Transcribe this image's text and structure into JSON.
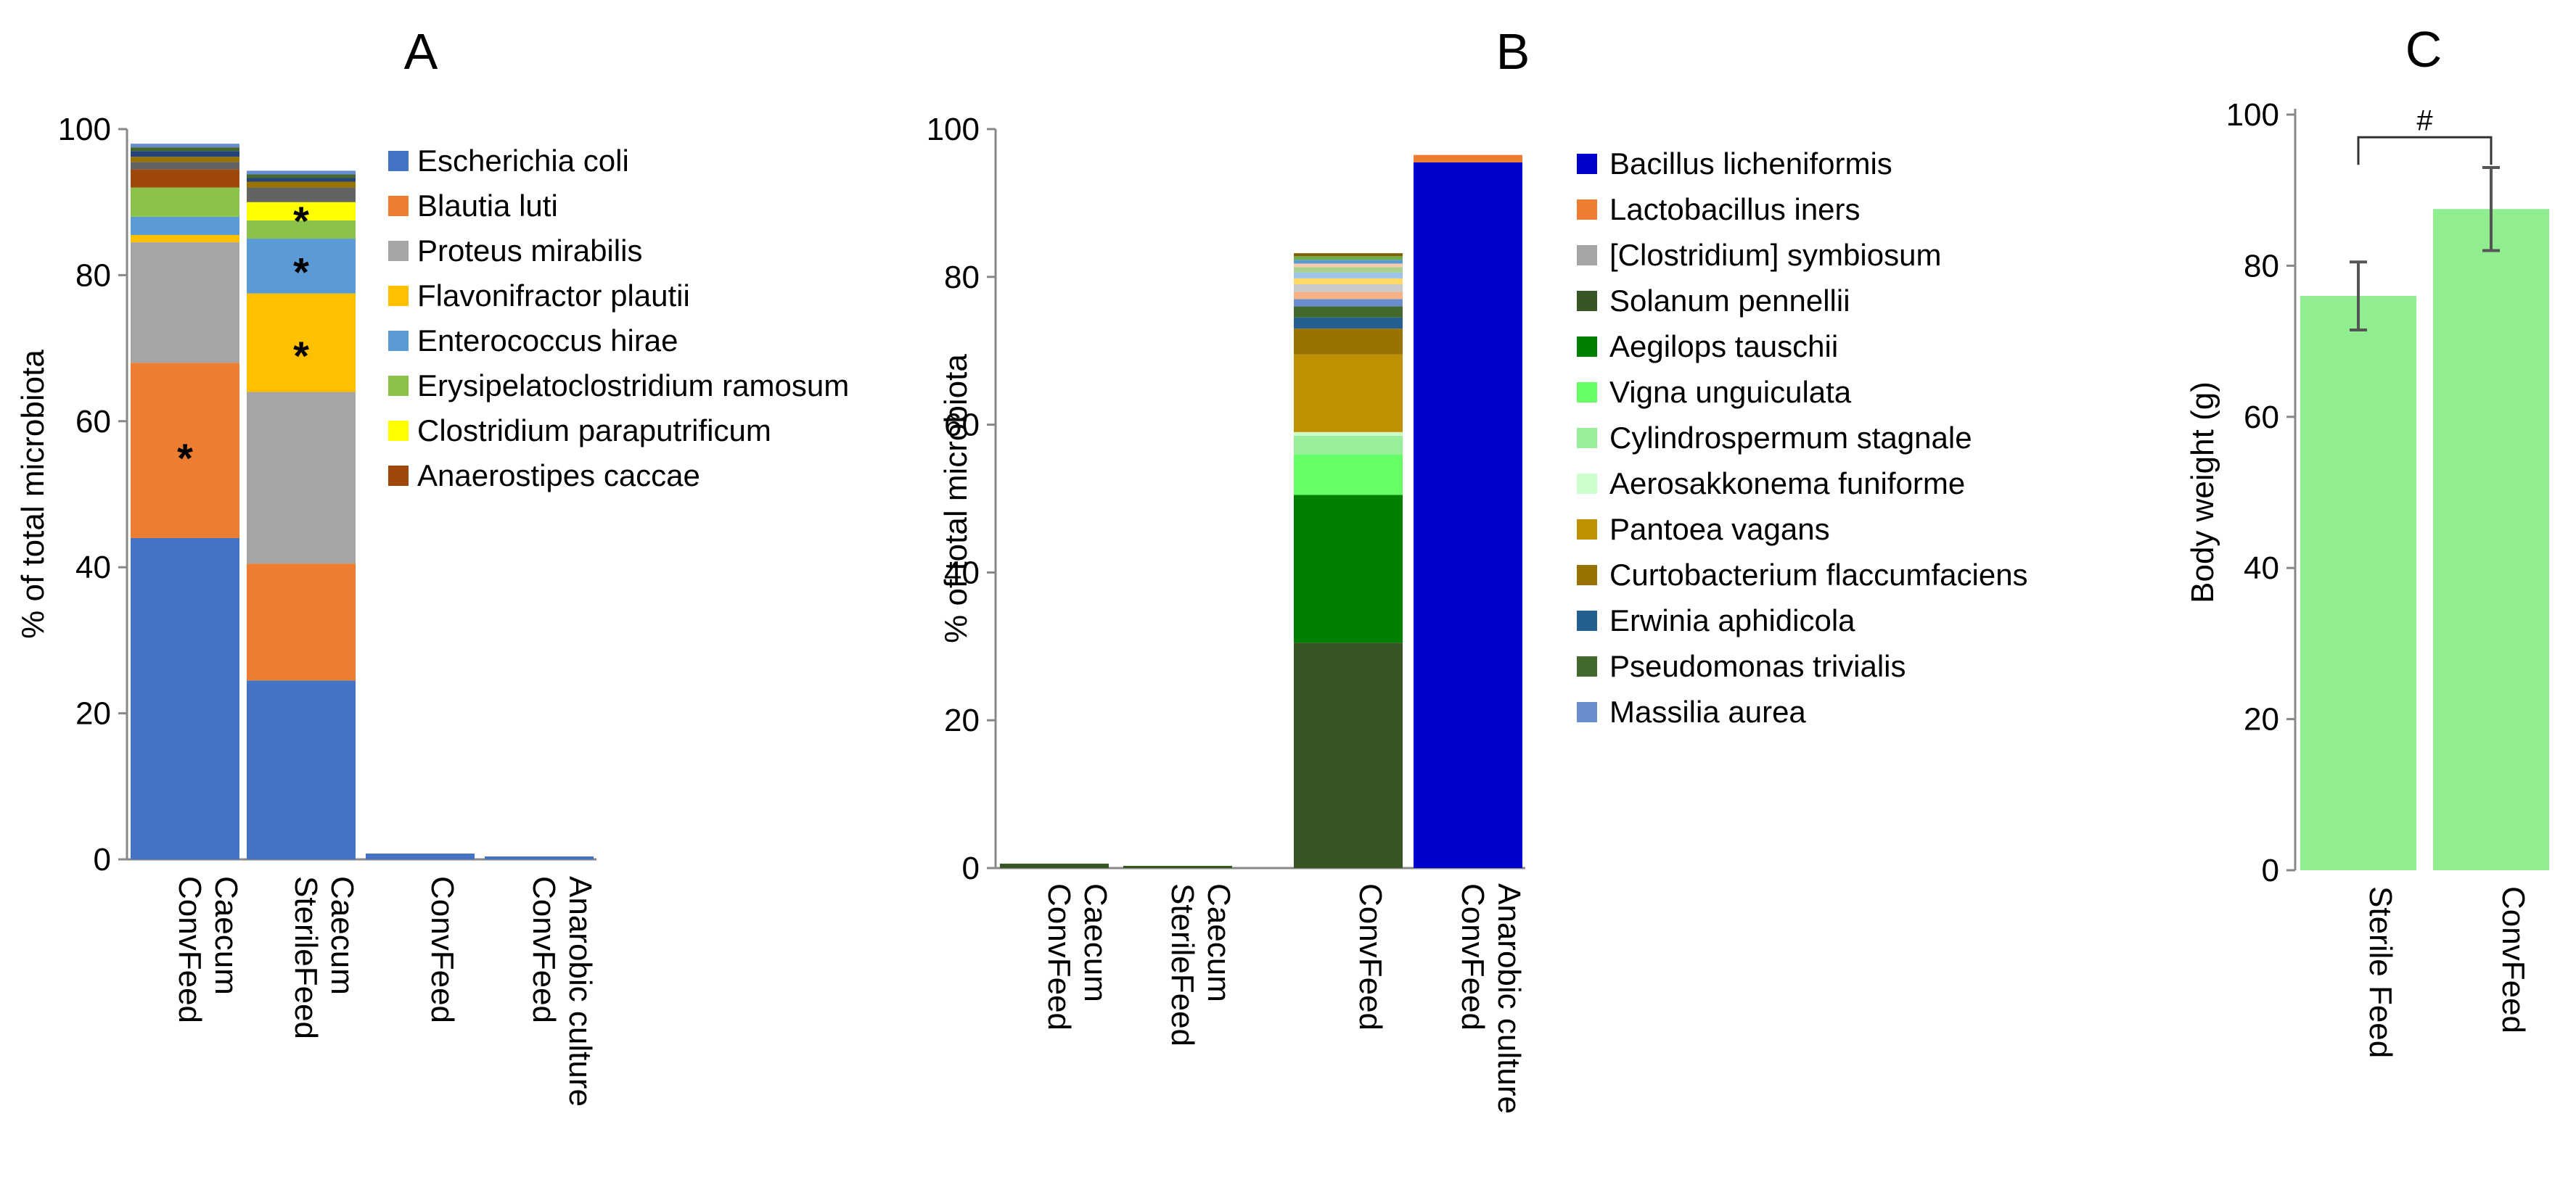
{
  "chart_data": [
    {
      "panel": "A",
      "type": "bar",
      "stacked": true,
      "title": "A",
      "ylabel": "% of total microbiota",
      "ylim": [
        0,
        100
      ],
      "yticks": [
        0,
        20,
        40,
        60,
        80,
        100
      ],
      "categories": [
        [
          "ConvFeed",
          "Caecum"
        ],
        [
          "SterileFeed",
          "Caecum"
        ],
        [
          "ConvFeed"
        ],
        [
          "ConvFeed",
          "Anarobic culture"
        ]
      ],
      "series": [
        {
          "name": "Escherichia coli",
          "color": "#4472C4",
          "values": [
            44,
            24.5,
            0.8,
            0.4
          ]
        },
        {
          "name": "Blautia luti",
          "color": "#ED7D31",
          "values": [
            24,
            16,
            0,
            0
          ]
        },
        {
          "name": "Proteus mirabilis",
          "color": "#A5A5A5",
          "values": [
            16.5,
            23.5,
            0,
            0
          ]
        },
        {
          "name": "Flavonifractor plautii",
          "color": "#FFC000",
          "values": [
            1,
            13.5,
            0,
            0
          ]
        },
        {
          "name": "Enterococcus hirae",
          "color": "#5B9BD5",
          "values": [
            2.5,
            7.5,
            0,
            0
          ]
        },
        {
          "name": "Erysipelatoclostridium ramosum",
          "color": "#8BC34A",
          "values": [
            4,
            2.5,
            0,
            0
          ]
        },
        {
          "name": "Clostridium paraputrificum",
          "color": "#FFFF00",
          "values": [
            0,
            2.5,
            0,
            0
          ]
        },
        {
          "name": "Anaerostipes caccae",
          "color": "#9E480E",
          "values": [
            2.5,
            0,
            0,
            0
          ]
        }
      ],
      "other_segments": [
        {
          "color": "#636363",
          "values": [
            1,
            2,
            0,
            0
          ]
        },
        {
          "color": "#997300",
          "values": [
            0.7,
            0.8,
            0,
            0
          ]
        },
        {
          "color": "#264478",
          "values": [
            0.8,
            0.5,
            0,
            0
          ]
        },
        {
          "color": "#43682B",
          "values": [
            0.5,
            0.5,
            0,
            0
          ]
        },
        {
          "color": "#698ED0",
          "values": [
            0.5,
            0.5,
            0,
            0
          ]
        }
      ],
      "annotations": [
        {
          "text": "*",
          "category": 0,
          "y": 56
        },
        {
          "text": "*",
          "category": 1,
          "y": 70
        },
        {
          "text": "*",
          "category": 1,
          "y": 81.5
        },
        {
          "text": "*",
          "category": 1,
          "y": 88.5
        }
      ]
    },
    {
      "panel": "B",
      "type": "bar",
      "stacked": true,
      "title": "B",
      "ylabel": "% of total microbiota",
      "ylim": [
        0,
        100
      ],
      "yticks": [
        0,
        20,
        40,
        60,
        80,
        100
      ],
      "categories": [
        [
          "ConvFeed",
          "Caecum"
        ],
        [
          "SterileFeed",
          "Caecum"
        ],
        [
          "ConvFeed"
        ],
        [
          "ConvFeed",
          "Anarobic culture"
        ]
      ],
      "series": [
        {
          "name": "Bacillus licheniformis",
          "color": "#0000CC",
          "values": [
            0,
            0,
            0,
            95.5
          ]
        },
        {
          "name": "Lactobacillus iners",
          "color": "#ED7D31",
          "values": [
            0,
            0,
            0,
            1
          ]
        },
        {
          "name": "[Clostridium] symbiosum",
          "color": "#A5A5A5",
          "values": [
            0,
            0,
            0,
            0
          ]
        },
        {
          "name": "Solanum pennellii",
          "color": "#375623",
          "values": [
            0.6,
            0.3,
            30.5,
            0
          ]
        },
        {
          "name": "Aegilops tauschii",
          "color": "#008000",
          "values": [
            0,
            0,
            20,
            0
          ]
        },
        {
          "name": "Vigna unguiculata",
          "color": "#66FF66",
          "values": [
            0,
            0,
            5.5,
            0
          ]
        },
        {
          "name": "Cylindrospermum stagnale",
          "color": "#99EE99",
          "values": [
            0,
            0,
            2.5,
            0
          ]
        },
        {
          "name": "Aerosakkonema funiforme",
          "color": "#CCFFCC",
          "values": [
            0,
            0,
            0.5,
            0
          ]
        },
        {
          "name": "Pantoea vagans",
          "color": "#BF9000",
          "values": [
            0,
            0,
            10.5,
            0
          ]
        },
        {
          "name": "Curtobacterium flaccumfaciens",
          "color": "#997300",
          "values": [
            0,
            0,
            3.5,
            0
          ]
        },
        {
          "name": "Erwinia aphidicola",
          "color": "#255E91",
          "values": [
            0,
            0,
            1.5,
            0
          ]
        },
        {
          "name": "Pseudomonas trivialis",
          "color": "#43682B",
          "values": [
            0,
            0,
            1.5,
            0
          ]
        },
        {
          "name": "Massilia aurea",
          "color": "#698ED0",
          "values": [
            0,
            0,
            1,
            0
          ]
        }
      ],
      "other_segments": [
        {
          "color": "#F4B183",
          "values": [
            0,
            0,
            1,
            0
          ]
        },
        {
          "color": "#C9C9C9",
          "values": [
            0,
            0,
            1,
            0
          ]
        },
        {
          "color": "#FFD966",
          "values": [
            0,
            0,
            0.8,
            0
          ]
        },
        {
          "color": "#9DC3E6",
          "values": [
            0,
            0,
            0.8,
            0
          ]
        },
        {
          "color": "#A9D18E",
          "values": [
            0,
            0,
            0.7,
            0
          ]
        },
        {
          "color": "#F8CBAD",
          "values": [
            0,
            0,
            0.5,
            0
          ]
        },
        {
          "color": "#5B9BD5",
          "values": [
            0,
            0,
            0.5,
            0
          ]
        },
        {
          "color": "#70AD47",
          "values": [
            0,
            0,
            0.5,
            0
          ]
        },
        {
          "color": "#7F6000",
          "values": [
            0,
            0,
            0.4,
            0
          ]
        }
      ],
      "annotations": []
    },
    {
      "panel": "C",
      "type": "bar",
      "title": "C",
      "ylabel": "Body weight (g)",
      "ylim": [
        0,
        100
      ],
      "yticks": [
        0,
        20,
        40,
        60,
        80,
        100
      ],
      "categories": [
        "Sterile Feed",
        "ConvFeed"
      ],
      "color": "#90EE90",
      "values": [
        76,
        87.5
      ],
      "errors": [
        4.5,
        5.5
      ],
      "significance": {
        "label": "#",
        "between": [
          0,
          1
        ],
        "y": 97
      }
    }
  ]
}
